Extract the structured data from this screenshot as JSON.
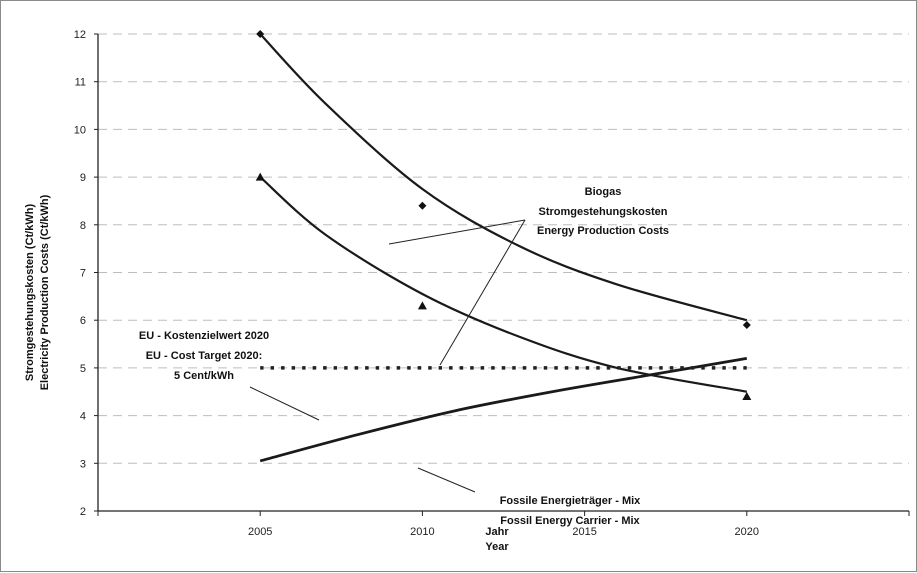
{
  "chart_data": {
    "type": "line",
    "xlabel": [
      "Jahr",
      "Year"
    ],
    "ylabel": [
      "Stromgestehungskosten (Ct/kWh)",
      "Electricity Production Costs (Ct/kWh)"
    ],
    "xlim": [
      2000,
      2025
    ],
    "ylim": [
      2,
      12
    ],
    "x_ticks": [
      "2005",
      "2010",
      "2015",
      "2020"
    ],
    "y_ticks": [
      "2",
      "3",
      "4",
      "5",
      "6",
      "7",
      "8",
      "9",
      "10",
      "11",
      "12"
    ],
    "grid": "horizontal-dashed",
    "series": [
      {
        "key": "biogas-upper",
        "style": "solid",
        "marker": "diamond",
        "points": [
          [
            2005,
            12.0
          ],
          [
            2010,
            8.4
          ],
          [
            2020,
            5.9
          ]
        ],
        "curve": [
          [
            2005,
            12.0
          ],
          [
            2007,
            10.55
          ],
          [
            2010,
            8.75
          ],
          [
            2013,
            7.55
          ],
          [
            2016,
            6.75
          ],
          [
            2020,
            6.0
          ]
        ]
      },
      {
        "key": "biogas-lower",
        "style": "solid",
        "marker": "triangle",
        "points": [
          [
            2005,
            9.0
          ],
          [
            2010,
            6.3
          ],
          [
            2020,
            4.4
          ]
        ],
        "curve": [
          [
            2005,
            9.0
          ],
          [
            2007,
            7.8
          ],
          [
            2010,
            6.55
          ],
          [
            2013,
            5.65
          ],
          [
            2016,
            5.0
          ],
          [
            2020,
            4.5
          ]
        ]
      },
      {
        "key": "fossil-mix",
        "style": "solid",
        "marker": "none",
        "curve": [
          [
            2005,
            3.05
          ],
          [
            2008,
            3.6
          ],
          [
            2011,
            4.1
          ],
          [
            2014,
            4.5
          ],
          [
            2017,
            4.85
          ],
          [
            2020,
            5.2
          ]
        ]
      },
      {
        "key": "eu-target",
        "style": "dotted",
        "marker": "none",
        "curve": [
          [
            2005,
            5.0
          ],
          [
            2020,
            5.0
          ]
        ]
      }
    ],
    "annotations": [
      {
        "key": "biogas",
        "lines": [
          "Biogas",
          "Stromgestehungskosten",
          "Energy Production Costs"
        ]
      },
      {
        "key": "eu",
        "lines": [
          "EU - Kostenzielwert 2020",
          "EU - Cost Target 2020:",
          "5 Cent/kWh"
        ]
      },
      {
        "key": "fossil",
        "lines": [
          "Fossile Energieträger - Mix",
          "Fossil Energy Carrier  - Mix"
        ]
      }
    ]
  }
}
